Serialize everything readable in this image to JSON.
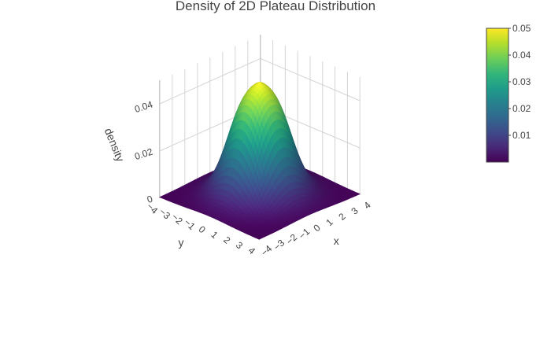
{
  "chart_data": {
    "type": "surface",
    "title": "Density of 2D Plateau Distribution",
    "xlabel": "x",
    "ylabel": "y",
    "zlabel": "density",
    "xlim": [
      -4,
      4
    ],
    "ylim": [
      -4,
      4
    ],
    "zlim": [
      0,
      0.05
    ],
    "x_ticks": [
      "−4",
      "−3",
      "−2",
      "−1",
      "0",
      "1",
      "2",
      "3",
      "4"
    ],
    "y_ticks": [
      "−4",
      "−3",
      "−2",
      "−1",
      "0",
      "1",
      "2",
      "3",
      "4"
    ],
    "z_ticks": [
      "0",
      "0.02",
      "0.04"
    ],
    "surface": {
      "description_formula": "plateau density peaking near 0.05 at the origin",
      "peak": 0.05,
      "plateau_radius": 0.9,
      "falloff_width": 0.55
    },
    "colorbar": {
      "ticks": [
        "0.01",
        "0.02",
        "0.03",
        "0.04",
        "0.05"
      ],
      "range": [
        0,
        0.05
      ],
      "colorscale": [
        "#440154",
        "#482878",
        "#3e4a89",
        "#31688e",
        "#26828e",
        "#1f9e89",
        "#35b779",
        "#6ece58",
        "#b5de2b",
        "#fde725"
      ]
    },
    "grid": true
  }
}
